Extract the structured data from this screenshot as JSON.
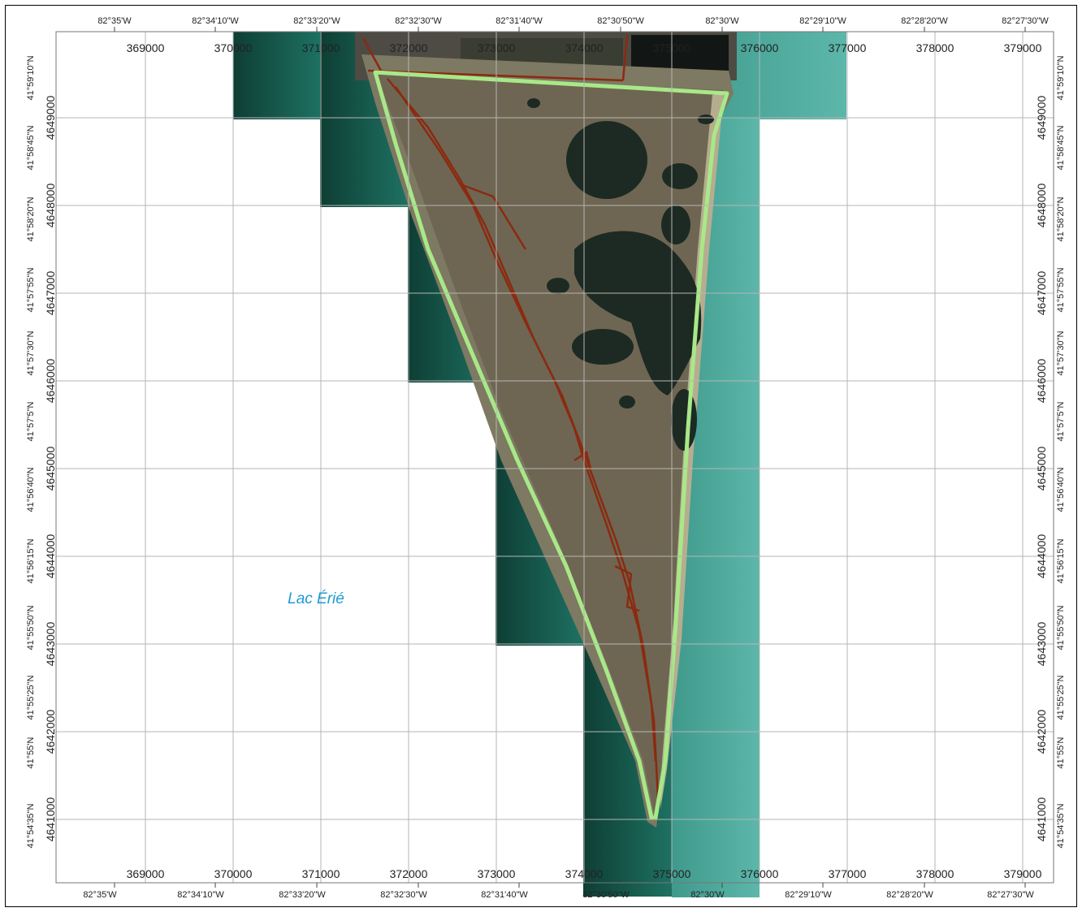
{
  "map": {
    "lake_label": "Lac Érié",
    "colors": {
      "study_area_outline": "#a8e888",
      "roads": "#8b2a10",
      "water_dark": "#0f3f34",
      "water_mid": "#1f6a58",
      "water_light": "#4fae9f",
      "marsh": "#6e6652",
      "ponds": "#1a2a22",
      "grid": "#b5b5b5"
    },
    "graticule": {
      "lon_labels": [
        "82°35'W",
        "82°34'10\"W",
        "82°33'20\"W",
        "82°32'30\"W",
        "82°31'40\"W",
        "82°30'50\"W",
        "82°30'W",
        "82°29'10\"W",
        "82°28'20\"W",
        "82°27'30\"W"
      ],
      "lat_labels": [
        "41°59'10\"N",
        "41°58'45\"N",
        "41°58'20\"N",
        "41°57'55\"N",
        "41°57'30\"N",
        "41°57'5\"N",
        "41°56'40\"N",
        "41°56'15\"N",
        "41°55'50\"N",
        "41°55'25\"N",
        "41°55'N",
        "41°54'35\"N"
      ]
    },
    "utm_grid": {
      "eastings": [
        "369000",
        "370000",
        "371000",
        "372000",
        "373000",
        "374000",
        "375000",
        "376000",
        "377000",
        "378000",
        "379000"
      ],
      "northings": [
        "4649000",
        "4648000",
        "4647000",
        "4646000",
        "4645000",
        "4644000",
        "4643000",
        "4642000",
        "4641000"
      ]
    }
  }
}
